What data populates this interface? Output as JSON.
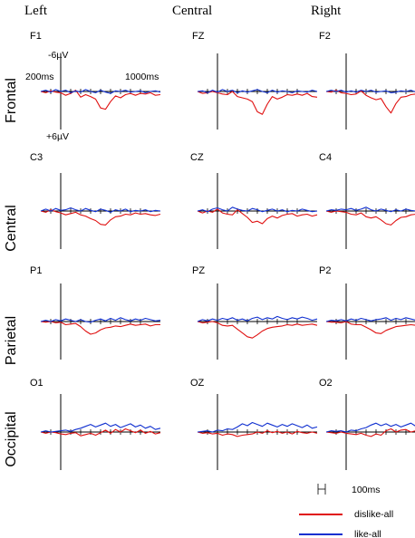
{
  "chart_data": {
    "type": "line",
    "columns": [
      "Left",
      "Central",
      "Right"
    ],
    "rows": [
      "Frontal",
      "Central",
      "Parietal",
      "Occipital"
    ],
    "electrodes": [
      [
        "F1",
        "FZ",
        "F2"
      ],
      [
        "C3",
        "CZ",
        "C4"
      ],
      [
        "P1",
        "PZ",
        "P2"
      ],
      [
        "O1",
        "OZ",
        "O2"
      ]
    ],
    "annotations": {
      "neg_amp": "-6µV",
      "pos_amp": "+6µV",
      "t_start": "200ms",
      "t_end": "1000ms",
      "scale": "100ms"
    },
    "x_unit": "ms",
    "y_unit": "µV",
    "xlim": [
      -200,
      1000
    ],
    "ylim": [
      6,
      -6
    ],
    "negative_up": true,
    "x": [
      -200,
      -150,
      -100,
      -50,
      0,
      50,
      100,
      150,
      200,
      250,
      300,
      350,
      400,
      450,
      500,
      550,
      600,
      650,
      700,
      750,
      800,
      850,
      900,
      950,
      1000
    ],
    "series": [
      {
        "name": "dislike-all",
        "color": "#e01010",
        "values": [
          [
            [
              0.0,
              0.2,
              -0.1,
              0.1,
              0.2,
              0.6,
              0.3,
              -0.2,
              0.9,
              0.5,
              0.8,
              1.2,
              2.6,
              2.8,
              1.6,
              0.7,
              1.0,
              0.5,
              0.3,
              0.6,
              0.3,
              0.4,
              0.2,
              0.6,
              0.5
            ],
            [
              0.0,
              0.3,
              0.2,
              0.0,
              0.2,
              0.4,
              0.5,
              0.0,
              0.8,
              1.0,
              1.2,
              1.6,
              3.2,
              3.6,
              2.0,
              0.8,
              1.2,
              0.9,
              0.5,
              0.6,
              0.4,
              0.6,
              0.3,
              0.8,
              0.9
            ],
            [
              0.0,
              0.1,
              -0.2,
              0.2,
              0.3,
              0.5,
              0.4,
              -0.1,
              0.6,
              1.0,
              1.3,
              1.1,
              2.4,
              3.4,
              1.9,
              0.9,
              0.8,
              0.5,
              0.4,
              0.4,
              0.3,
              0.6,
              0.4,
              0.5,
              0.7
            ]
          ],
          [
            [
              0.0,
              0.2,
              -0.2,
              0.1,
              0.3,
              0.6,
              0.4,
              0.2,
              0.6,
              0.8,
              1.2,
              1.5,
              2.1,
              2.2,
              1.4,
              0.9,
              0.8,
              0.5,
              0.6,
              0.3,
              0.5,
              0.4,
              0.6,
              0.7,
              0.5
            ],
            [
              0.0,
              0.3,
              0.0,
              0.2,
              -0.3,
              0.3,
              0.5,
              0.6,
              -0.2,
              0.4,
              1.0,
              1.8,
              1.6,
              2.0,
              1.2,
              0.8,
              1.1,
              0.7,
              0.5,
              0.4,
              0.8,
              0.6,
              0.5,
              0.8,
              0.6
            ],
            [
              0.0,
              0.2,
              0.0,
              0.1,
              0.2,
              0.5,
              0.6,
              0.3,
              0.9,
              1.1,
              0.9,
              1.4,
              2.0,
              2.2,
              1.5,
              1.0,
              0.9,
              0.6,
              0.5,
              0.6,
              0.4,
              0.5,
              0.7,
              0.6,
              0.6
            ]
          ],
          [
            [
              0.0,
              0.1,
              0.0,
              0.2,
              0.1,
              0.5,
              0.4,
              0.3,
              0.8,
              1.5,
              2.0,
              1.8,
              1.3,
              1.0,
              0.9,
              0.7,
              0.8,
              0.6,
              0.4,
              0.6,
              0.5,
              0.4,
              0.7,
              0.5,
              0.5
            ],
            [
              0.0,
              0.2,
              0.1,
              0.0,
              0.2,
              0.6,
              0.7,
              0.6,
              1.2,
              1.8,
              2.4,
              2.6,
              2.1,
              1.5,
              1.1,
              0.9,
              0.8,
              0.7,
              0.5,
              0.6,
              0.4,
              0.6,
              0.5,
              0.4,
              0.6
            ],
            [
              0.0,
              0.1,
              0.1,
              0.2,
              0.0,
              0.4,
              0.5,
              0.5,
              0.9,
              1.3,
              1.8,
              1.9,
              1.4,
              1.1,
              0.8,
              0.7,
              0.6,
              0.5,
              0.6,
              0.4,
              0.5,
              0.6,
              0.4,
              0.5,
              0.5
            ]
          ],
          [
            [
              0.0,
              0.2,
              0.0,
              0.1,
              0.3,
              0.4,
              0.2,
              0.1,
              0.6,
              0.4,
              0.2,
              0.5,
              0.1,
              -0.3,
              0.2,
              -0.4,
              0.0,
              -0.5,
              -0.2,
              0.1,
              -0.3,
              0.2,
              -0.1,
              0.3,
              0.1
            ],
            [
              0.0,
              0.2,
              0.1,
              0.3,
              0.2,
              0.5,
              0.3,
              0.4,
              0.7,
              0.5,
              0.4,
              0.3,
              0.0,
              0.2,
              -0.2,
              0.1,
              -0.1,
              0.2,
              0.0,
              0.3,
              -0.1,
              0.1,
              0.2,
              0.0,
              0.2
            ],
            [
              0.0,
              0.1,
              0.2,
              0.0,
              0.2,
              0.3,
              0.4,
              0.2,
              0.5,
              0.7,
              0.3,
              0.5,
              -0.2,
              -0.5,
              0.0,
              -0.3,
              -0.4,
              0.0,
              -0.2,
              0.1,
              -0.3,
              0.0,
              0.2,
              0.1,
              0.2
            ]
          ]
        ]
      },
      {
        "name": "like-all",
        "color": "#1030d0",
        "values": [
          [
            [
              0.0,
              -0.2,
              0.1,
              -0.3,
              0.0,
              -0.2,
              0.2,
              -0.1,
              0.1,
              -0.3,
              0.0,
              0.2,
              -0.2,
              0.1,
              0.3,
              -0.1,
              0.0,
              -0.2,
              0.1,
              0.0,
              -0.1,
              0.2,
              0.0,
              -0.1,
              0.1
            ],
            [
              0.0,
              -0.1,
              0.2,
              -0.2,
              0.1,
              -0.3,
              0.0,
              -0.2,
              0.2,
              -0.1,
              0.1,
              -0.1,
              -0.3,
              0.0,
              0.2,
              -0.2,
              0.1,
              -0.1,
              0.0,
              0.2,
              -0.1,
              0.0,
              0.1,
              -0.2,
              0.0
            ],
            [
              0.0,
              -0.2,
              0.0,
              -0.2,
              0.1,
              -0.1,
              0.1,
              -0.2,
              0.0,
              -0.2,
              0.1,
              0.0,
              -0.1,
              0.2,
              0.1,
              -0.1,
              0.0,
              -0.2,
              0.1,
              0.0,
              -0.1,
              0.1,
              0.0,
              -0.2,
              0.0
            ]
          ],
          [
            [
              0.0,
              -0.3,
              0.0,
              -0.4,
              -0.1,
              -0.2,
              -0.5,
              -0.2,
              0.0,
              -0.4,
              -0.1,
              0.1,
              -0.3,
              -0.1,
              0.2,
              -0.2,
              0.0,
              -0.3,
              0.1,
              -0.1,
              0.0,
              -0.2,
              0.1,
              -0.1,
              0.0
            ],
            [
              0.0,
              -0.2,
              0.1,
              -0.3,
              -0.5,
              -0.2,
              0.0,
              -0.6,
              -0.3,
              -0.1,
              0.0,
              -0.4,
              -0.2,
              0.1,
              -0.1,
              -0.3,
              0.0,
              -0.2,
              0.1,
              -0.1,
              0.0,
              -0.3,
              -0.1,
              0.1,
              0.0
            ],
            [
              0.0,
              -0.2,
              -0.1,
              -0.3,
              -0.2,
              -0.4,
              -0.1,
              -0.3,
              -0.6,
              -0.2,
              0.0,
              -0.3,
              -0.1,
              0.1,
              -0.2,
              0.0,
              -0.3,
              -0.1,
              0.0,
              -0.2,
              0.1,
              -0.1,
              0.0,
              -0.2,
              0.0
            ]
          ],
          [
            [
              0.0,
              -0.2,
              0.0,
              -0.3,
              -0.1,
              -0.4,
              -0.2,
              0.0,
              -0.3,
              0.0,
              0.1,
              -0.2,
              -0.4,
              -0.1,
              -0.5,
              -0.2,
              -0.6,
              -0.3,
              -0.1,
              -0.4,
              -0.2,
              -0.5,
              -0.3,
              -0.1,
              -0.2
            ],
            [
              0.0,
              -0.3,
              -0.1,
              -0.4,
              -0.2,
              -0.5,
              -0.3,
              -0.6,
              -0.2,
              -0.4,
              -0.1,
              -0.5,
              -0.7,
              -0.3,
              -0.6,
              -0.4,
              -0.8,
              -0.5,
              -0.3,
              -0.6,
              -0.4,
              -0.7,
              -0.5,
              -0.2,
              -0.4
            ],
            [
              0.0,
              -0.2,
              -0.1,
              -0.3,
              -0.1,
              -0.4,
              -0.2,
              -0.5,
              -0.3,
              -0.1,
              -0.3,
              -0.4,
              -0.6,
              -0.2,
              -0.5,
              -0.3,
              -0.6,
              -0.4,
              -0.2,
              -0.5,
              -0.3,
              -0.6,
              -0.4,
              -0.2,
              -0.3
            ]
          ],
          [
            [
              0.0,
              -0.2,
              0.0,
              -0.1,
              -0.2,
              -0.3,
              -0.1,
              -0.4,
              -0.6,
              -0.9,
              -1.2,
              -0.8,
              -1.1,
              -1.4,
              -0.9,
              -1.2,
              -0.7,
              -1.0,
              -1.3,
              -0.8,
              -1.1,
              -0.6,
              -0.9,
              -0.4,
              -0.6
            ],
            [
              0.0,
              -0.1,
              -0.2,
              0.0,
              -0.3,
              -0.2,
              -0.5,
              -0.4,
              -0.8,
              -1.3,
              -1.0,
              -1.5,
              -1.2,
              -0.9,
              -1.4,
              -1.1,
              -0.8,
              -1.2,
              -0.9,
              -1.3,
              -1.0,
              -0.7,
              -1.1,
              -0.6,
              -0.8
            ],
            [
              0.0,
              -0.2,
              -0.1,
              -0.2,
              0.0,
              -0.3,
              -0.2,
              -0.5,
              -0.7,
              -1.1,
              -1.4,
              -1.0,
              -1.3,
              -0.9,
              -1.2,
              -0.8,
              -1.1,
              -1.4,
              -0.9,
              -1.2,
              -0.8,
              -1.0,
              -0.7,
              -0.5,
              -0.7
            ]
          ]
        ]
      }
    ]
  }
}
